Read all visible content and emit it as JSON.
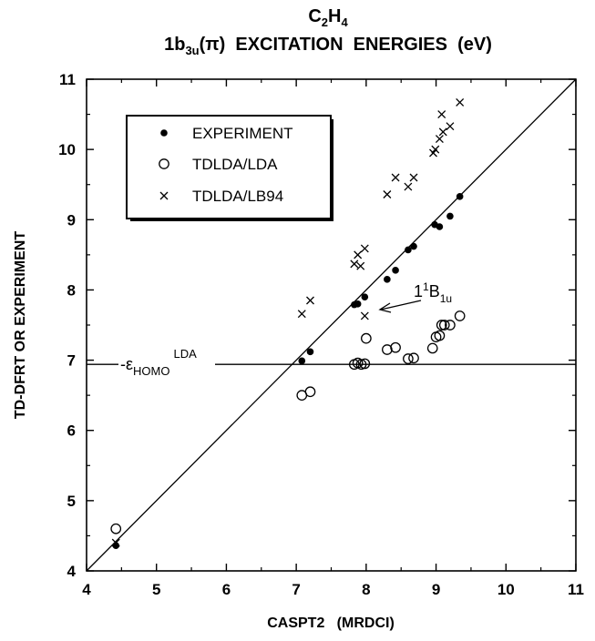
{
  "chart_data": {
    "type": "scatter",
    "title_line1": {
      "base1": "C",
      "sub1": "2",
      "base2": "H",
      "sub2": "4"
    },
    "title_line2": {
      "pre": "1b",
      "sub": "3u",
      "mid": "(π)",
      "post": "  EXCITATION  ENERGIES  (eV)"
    },
    "xlabel": "CASPT2   (MRDCI)",
    "ylabel": "TD-DFRT OR EXPERIMENT",
    "xlim": [
      4,
      11
    ],
    "ylim": [
      4,
      11
    ],
    "xticks": [
      "4",
      "5",
      "6",
      "7",
      "8",
      "9",
      "10",
      "11"
    ],
    "yticks": [
      "4",
      "5",
      "6",
      "7",
      "8",
      "9",
      "10",
      "11"
    ],
    "grid": false,
    "legend_position": "top-left",
    "diagonal_line": [
      [
        4,
        4
      ],
      [
        11,
        11
      ]
    ],
    "hline": {
      "y": 6.94,
      "label": {
        "pre": "-ε",
        "sub": "HOMO",
        "sup": "LDA"
      }
    },
    "annotation": {
      "text": {
        "pre": "1",
        "sup": "1",
        "base": "B",
        "sub": "1u"
      },
      "points_to": [
        7.98,
        7.63
      ]
    },
    "series": [
      {
        "name": "EXPERIMENT",
        "marker": "filled-circle",
        "points": [
          [
            4.42,
            4.36
          ],
          [
            7.08,
            6.99
          ],
          [
            7.2,
            7.12
          ],
          [
            7.83,
            7.79
          ],
          [
            7.88,
            7.8
          ],
          [
            7.98,
            7.9
          ],
          [
            8.3,
            8.15
          ],
          [
            8.42,
            8.28
          ],
          [
            8.6,
            8.57
          ],
          [
            8.68,
            8.62
          ],
          [
            8.98,
            8.93
          ],
          [
            9.05,
            8.9
          ],
          [
            9.2,
            9.05
          ],
          [
            9.34,
            9.33
          ]
        ]
      },
      {
        "name": "TDLDA/LDA",
        "marker": "open-circle",
        "points": [
          [
            4.42,
            4.6
          ],
          [
            7.08,
            6.5
          ],
          [
            7.2,
            6.55
          ],
          [
            7.83,
            6.94
          ],
          [
            7.88,
            6.96
          ],
          [
            7.93,
            6.94
          ],
          [
            7.98,
            6.95
          ],
          [
            8.0,
            7.31
          ],
          [
            8.3,
            7.15
          ],
          [
            8.42,
            7.18
          ],
          [
            8.6,
            7.02
          ],
          [
            8.68,
            7.03
          ],
          [
            8.95,
            7.17
          ],
          [
            9.0,
            7.33
          ],
          [
            9.05,
            7.35
          ],
          [
            9.08,
            7.5
          ],
          [
            9.12,
            7.5
          ],
          [
            9.2,
            7.5
          ],
          [
            9.34,
            7.63
          ]
        ]
      },
      {
        "name": "TDLDA/LB94",
        "marker": "cross",
        "points": [
          [
            4.42,
            4.4
          ],
          [
            7.08,
            7.66
          ],
          [
            7.2,
            7.85
          ],
          [
            7.83,
            8.37
          ],
          [
            7.88,
            8.5
          ],
          [
            7.92,
            8.34
          ],
          [
            7.98,
            8.59
          ],
          [
            7.98,
            7.63
          ],
          [
            8.3,
            9.36
          ],
          [
            8.42,
            9.6
          ],
          [
            8.6,
            9.47
          ],
          [
            8.68,
            9.6
          ],
          [
            8.96,
            9.95
          ],
          [
            8.99,
            10.0
          ],
          [
            9.05,
            10.15
          ],
          [
            9.08,
            10.5
          ],
          [
            9.1,
            10.25
          ],
          [
            9.2,
            10.33
          ],
          [
            9.34,
            10.67
          ]
        ]
      }
    ]
  }
}
